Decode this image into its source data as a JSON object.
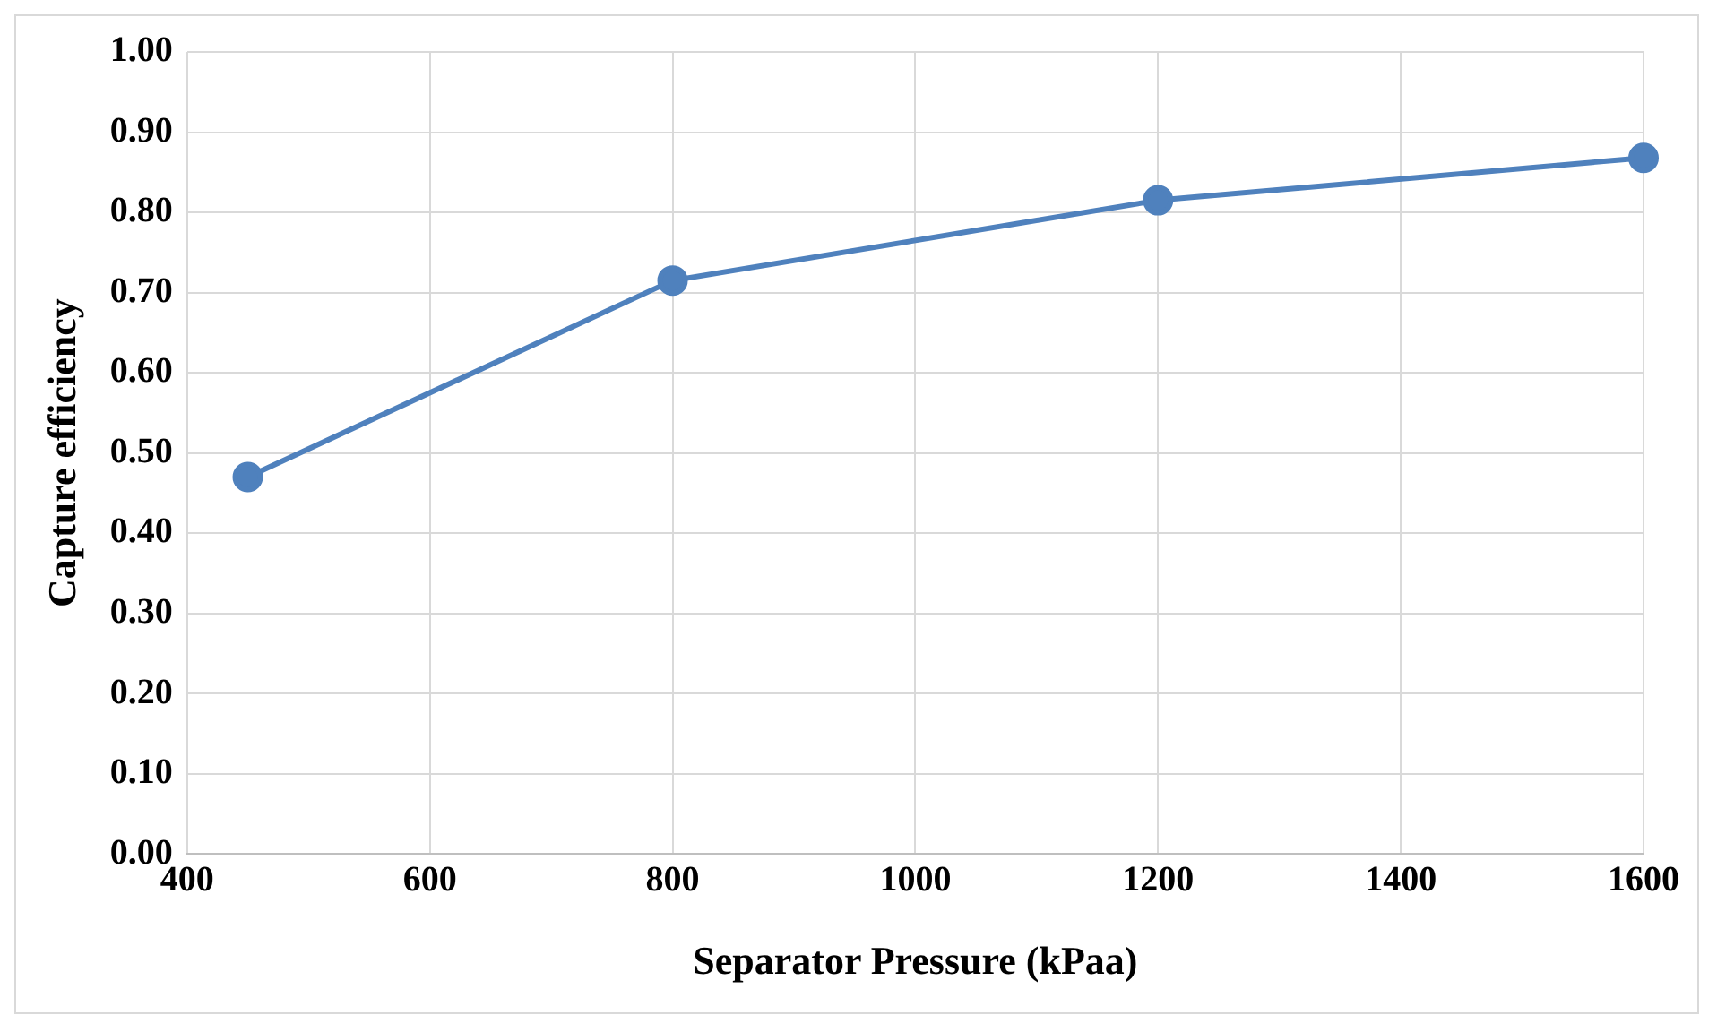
{
  "chart_data": {
    "type": "line",
    "xlabel": "Separator Pressure (kPaa)",
    "ylabel": "Capture efficiency",
    "x": [
      450,
      800,
      1200,
      1600
    ],
    "series": [
      {
        "color": "#4f81bd",
        "values": [
          0.47,
          0.715,
          0.815,
          0.868
        ]
      }
    ],
    "xlim": [
      400,
      1600
    ],
    "xticks": [
      400,
      600,
      800,
      1000,
      1200,
      1400,
      1600
    ],
    "ylim": [
      0,
      1
    ],
    "yticks": [
      {
        "value": 0,
        "label": "0.00"
      },
      {
        "value": 0.1,
        "label": "0.10"
      },
      {
        "value": 0.2,
        "label": "0.20"
      },
      {
        "value": 0.3,
        "label": "0.30"
      },
      {
        "value": 0.4,
        "label": "0.40"
      },
      {
        "value": 0.5,
        "label": "0.50"
      },
      {
        "value": 0.6,
        "label": "0.60"
      },
      {
        "value": 0.7,
        "label": "0.70"
      },
      {
        "value": 0.8,
        "label": "0.80"
      },
      {
        "value": 0.9,
        "label": "0.90"
      },
      {
        "value": 1,
        "label": "1.00"
      }
    ],
    "grid": true,
    "legend": false,
    "marker": "circle",
    "line_style": "solid"
  }
}
